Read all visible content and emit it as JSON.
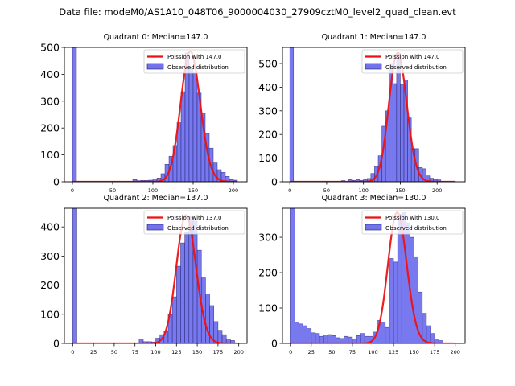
{
  "figure": {
    "suptitle": "Data file: modeM0/AS1A10_048T06_9000004030_27909cztM0_level2_quad_clean.evt"
  },
  "colors": {
    "bar_fill": "#7272ee",
    "bar_edge": "#1a1a66",
    "poisson_line": "#ee1111"
  },
  "chart_data": [
    {
      "type": "bar",
      "title": "Quadrant 0: Median=147.0",
      "legend": [
        "Poission with 147.0",
        "Observed distribution"
      ],
      "legend_position": "top-right",
      "xlim": [
        -10,
        217
      ],
      "ylim": [
        0,
        500
      ],
      "xticks": [
        0,
        50,
        100,
        150,
        200
      ],
      "yticks": [
        0,
        100,
        200,
        300,
        400,
        500
      ],
      "bin_width": 5,
      "bins_start": [
        0,
        75,
        80,
        85,
        90,
        95,
        100,
        105,
        110,
        115,
        120,
        125,
        130,
        135,
        140,
        145,
        150,
        155,
        160,
        165,
        170,
        175,
        180,
        185,
        190,
        195,
        200
      ],
      "counts": [
        560,
        8,
        4,
        5,
        5,
        6,
        10,
        14,
        30,
        65,
        95,
        135,
        220,
        335,
        480,
        420,
        405,
        330,
        255,
        180,
        125,
        70,
        45,
        35,
        20,
        8,
        6
      ],
      "poisson": {
        "mean": 147.0,
        "peak": 485,
        "x_range": [
          0,
          205
        ]
      }
    },
    {
      "type": "bar",
      "title": "Quadrant 1: Median=147.0",
      "legend": [
        "Poission with 147.0",
        "Observed distribution"
      ],
      "legend_position": "top-right",
      "xlim": [
        -10,
        238
      ],
      "ylim": [
        0,
        568
      ],
      "xticks": [
        0,
        50,
        100,
        150,
        200
      ],
      "yticks": [
        0,
        100,
        200,
        300,
        400,
        500
      ],
      "bin_width": 5,
      "bins_start": [
        0,
        70,
        80,
        85,
        90,
        95,
        100,
        105,
        110,
        115,
        120,
        125,
        130,
        135,
        140,
        145,
        150,
        155,
        160,
        165,
        170,
        175,
        180,
        185,
        190,
        195,
        200
      ],
      "counts": [
        600,
        5,
        9,
        6,
        9,
        6,
        10,
        14,
        35,
        65,
        110,
        235,
        300,
        500,
        415,
        545,
        410,
        430,
        270,
        140,
        140,
        60,
        55,
        25,
        15,
        10,
        8
      ],
      "poisson": {
        "mean": 147.0,
        "peak": 545,
        "x_range": [
          0,
          225
        ]
      }
    },
    {
      "type": "bar",
      "title": "Quadrant 2: Median=137.0",
      "legend": [
        "Poission with 137.0",
        "Observed distribution"
      ],
      "legend_position": "top-right",
      "xlim": [
        -10,
        210
      ],
      "ylim": [
        0,
        464
      ],
      "xticks": [
        0,
        25,
        50,
        75,
        100,
        125,
        150,
        175,
        200
      ],
      "yticks": [
        0,
        100,
        200,
        300,
        400
      ],
      "bin_width": 5,
      "bins_start": [
        0,
        80,
        85,
        90,
        95,
        100,
        105,
        110,
        115,
        120,
        125,
        130,
        135,
        140,
        145,
        150,
        155,
        160,
        165,
        170,
        175,
        180,
        185,
        190
      ],
      "counts": [
        500,
        15,
        6,
        6,
        5,
        18,
        30,
        42,
        100,
        160,
        265,
        345,
        380,
        435,
        420,
        320,
        225,
        170,
        130,
        75,
        45,
        30,
        15,
        10
      ],
      "poisson": {
        "mean": 137.0,
        "peak": 440,
        "x_range": [
          0,
          198
        ]
      }
    },
    {
      "type": "bar",
      "title": "Quadrant 3: Median=130.0",
      "legend": [
        "Poission with 130.0",
        "Observed distribution"
      ],
      "legend_position": "top-right",
      "xlim": [
        -10,
        212
      ],
      "ylim": [
        0,
        382
      ],
      "xticks": [
        0,
        25,
        50,
        75,
        100,
        125,
        150,
        175,
        200
      ],
      "yticks": [
        0,
        100,
        200,
        300
      ],
      "bin_width": 5,
      "bins_start": [
        0,
        5,
        10,
        15,
        20,
        25,
        30,
        35,
        40,
        45,
        50,
        55,
        60,
        65,
        70,
        75,
        80,
        85,
        90,
        95,
        100,
        105,
        110,
        115,
        120,
        125,
        130,
        135,
        140,
        145,
        150,
        155,
        160,
        165,
        170,
        175,
        180
      ],
      "counts": [
        420,
        60,
        55,
        50,
        42,
        30,
        28,
        20,
        24,
        25,
        22,
        16,
        14,
        20,
        18,
        12,
        22,
        28,
        20,
        20,
        32,
        65,
        60,
        45,
        240,
        230,
        365,
        370,
        340,
        300,
        245,
        145,
        85,
        50,
        28,
        10,
        8
      ],
      "poisson": {
        "mean": 130.0,
        "peak": 370,
        "x_range": [
          0,
          198
        ]
      }
    }
  ]
}
